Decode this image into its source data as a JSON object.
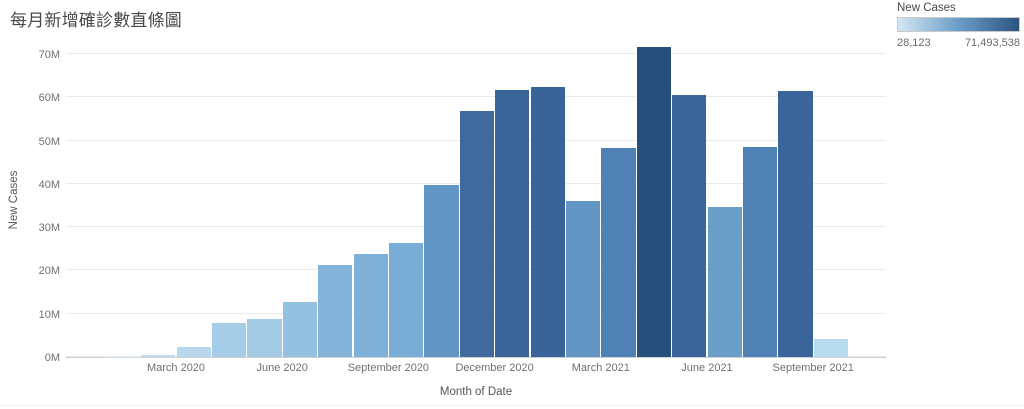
{
  "title": "每月新增確診數直條圖",
  "legend": {
    "title": "New Cases",
    "min_label": "28,123",
    "max_label": "71,493,538",
    "gradient_colors": [
      "#d3e7f4",
      "#6b9dc9",
      "#2b557f"
    ]
  },
  "colors": {
    "background": "#ffffff",
    "gridline": "#ebebeb",
    "axis_line": "#d0d0d0",
    "tick_text": "#707070",
    "axis_title_text": "#555555",
    "title_text": "#4a4a4a"
  },
  "chart_data": {
    "type": "bar",
    "title": "每月新增確診數直條圖",
    "xlabel": "Month of Date",
    "ylabel": "New Cases",
    "ylim": [
      0,
      70000000
    ],
    "grid": "horizontal",
    "legend_position": "top-right",
    "y_ticks": {
      "values": [
        0,
        10000000,
        20000000,
        30000000,
        40000000,
        50000000,
        60000000,
        70000000
      ],
      "labels": [
        "0M",
        "10M",
        "20M",
        "30M",
        "40M",
        "50M",
        "60M",
        "70M"
      ]
    },
    "x_ticks": [
      {
        "label": "March 2020",
        "month_index": 2
      },
      {
        "label": "June 2020",
        "month_index": 5
      },
      {
        "label": "September 2020",
        "month_index": 8
      },
      {
        "label": "December 2020",
        "month_index": 11
      },
      {
        "label": "March 2021",
        "month_index": 14
      },
      {
        "label": "June 2021",
        "month_index": 17
      },
      {
        "label": "September 2021",
        "month_index": 20
      }
    ],
    "categories": [
      "January 2020",
      "February 2020",
      "March 2020",
      "April 2020",
      "May 2020",
      "June 2020",
      "July 2020",
      "August 2020",
      "September 2020",
      "October 2020",
      "November 2020",
      "December 2020",
      "January 2021",
      "February 2021",
      "March 2021",
      "April 2021",
      "May 2021",
      "June 2021",
      "July 2021",
      "August 2021",
      "September 2021"
    ],
    "values": [
      28123,
      450000,
      2300000,
      7800000,
      8700000,
      12700000,
      21300000,
      23900000,
      26300000,
      39700000,
      56900000,
      61700000,
      62300000,
      36100000,
      48300000,
      71493538,
      60600000,
      34600000,
      48600000,
      61500000,
      4200000
    ],
    "bar_colors": [
      "#c6e0f2",
      "#c0ddf0",
      "#b9d8ed",
      "#a6cde8",
      "#a3cbe6",
      "#95c1e1",
      "#84b4da",
      "#7fb0d7",
      "#7aadd5",
      "#6195c3",
      "#40699e",
      "#3a6599",
      "#396499",
      "#6396c4",
      "#5081b4",
      "#274f7d",
      "#3b669b",
      "#6b9dc9",
      "#4f81b4",
      "#3a659a",
      "#b7dbef"
    ]
  }
}
